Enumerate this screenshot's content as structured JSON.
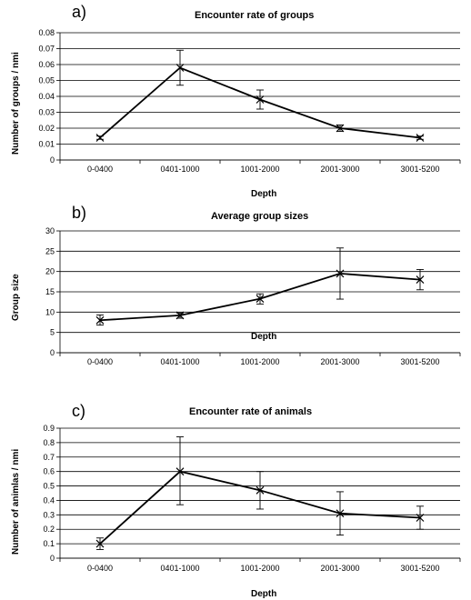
{
  "chart_data": [
    {
      "type": "line",
      "panel_letter": "a)",
      "title": "Encounter rate of groups",
      "xlabel": "Depth",
      "ylabel": "Number of groups / nmi",
      "categories": [
        "0-0400",
        "0401-1000",
        "1001-2000",
        "2001-3000",
        "3001-5200"
      ],
      "ylim": [
        0,
        0.08
      ],
      "yticks": [
        "0",
        "0.01",
        "0.02",
        "0.03",
        "0.04",
        "0.05",
        "0.06",
        "0.07",
        "0.08"
      ],
      "grid": true,
      "series": [
        {
          "values": [
            0.014,
            0.058,
            0.038,
            0.02,
            0.014
          ],
          "error_low": [
            0.013,
            0.047,
            0.032,
            0.018,
            0.013
          ],
          "error_high": [
            0.015,
            0.069,
            0.044,
            0.022,
            0.015
          ],
          "marker": "x",
          "color": "#000000"
        }
      ]
    },
    {
      "type": "line",
      "panel_letter": "b)",
      "title": "Average group sizes",
      "xlabel": "Depth",
      "ylabel": "Group size",
      "categories": [
        "0-0400",
        "0401-1000",
        "1001-2000",
        "2001-3000",
        "3001-5200"
      ],
      "ylim": [
        0,
        30
      ],
      "yticks": [
        "0",
        "5",
        "10",
        "15",
        "20",
        "25",
        "30"
      ],
      "grid": true,
      "series": [
        {
          "values": [
            8.0,
            9.2,
            13.3,
            19.5,
            18.0
          ],
          "error_low": [
            6.8,
            8.5,
            12.0,
            13.2,
            15.5
          ],
          "error_high": [
            9.3,
            9.8,
            14.5,
            25.8,
            20.5
          ],
          "marker": "x",
          "color": "#000000"
        }
      ]
    },
    {
      "type": "line",
      "panel_letter": "c)",
      "title": "Encounter rate of animals",
      "xlabel": "Depth",
      "ylabel": "Number of animlas / nmi",
      "categories": [
        "0-0400",
        "0401-1000",
        "1001-2000",
        "2001-3000",
        "3001-5200"
      ],
      "ylim": [
        0,
        0.9
      ],
      "yticks": [
        "0",
        "0.1",
        "0.2",
        "0.3",
        "0.4",
        "0.5",
        "0.6",
        "0.7",
        "0.8",
        "0.9"
      ],
      "grid": true,
      "series": [
        {
          "values": [
            0.1,
            0.6,
            0.47,
            0.31,
            0.28
          ],
          "error_low": [
            0.06,
            0.37,
            0.34,
            0.16,
            0.2
          ],
          "error_high": [
            0.14,
            0.84,
            0.6,
            0.46,
            0.36
          ],
          "marker": "x",
          "color": "#000000"
        }
      ]
    }
  ]
}
